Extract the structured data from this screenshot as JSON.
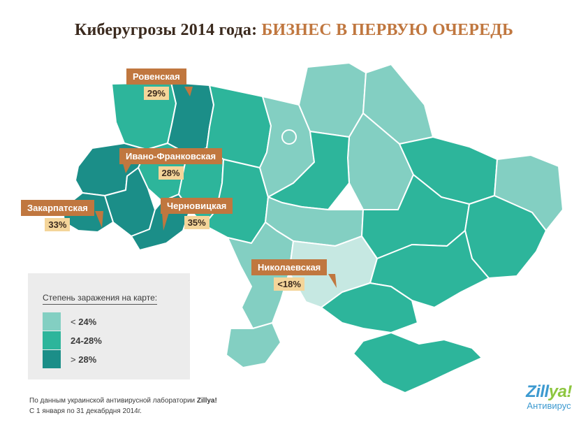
{
  "title": {
    "main": "Киберугрозы 2014 года:",
    "accent": "БИЗНЕС В ПЕРВУЮ ОЧЕРЕДЬ"
  },
  "colors": {
    "low": "#83cfc2",
    "mid": "#2db59b",
    "high": "#1b8e88",
    "lightest": "#c6e8e2",
    "callout_bg": "#c0773f",
    "value_bg": "#f4d59a"
  },
  "callouts": [
    {
      "id": "rivne",
      "region": "Ровенская",
      "value": "29%"
    },
    {
      "id": "ivano",
      "region": "Ивано-Франковская",
      "value": "28%"
    },
    {
      "id": "zakarpattia",
      "region": "Закарпатская",
      "value": "33%"
    },
    {
      "id": "chernivtsi",
      "region": "Черновицкая",
      "value": "35%"
    },
    {
      "id": "mykolaiv",
      "region": "Николаевская",
      "value": "<18%"
    }
  ],
  "legend": {
    "title": "Степень заражения на карте:",
    "items": [
      {
        "label_prefix": "< ",
        "label_value": "24%",
        "color": "#83cfc2"
      },
      {
        "label_prefix": "",
        "label_value": "24-28%",
        "color": "#2db59b"
      },
      {
        "label_prefix": "> ",
        "label_value": "28%",
        "color": "#1b8e88"
      }
    ]
  },
  "footer": {
    "line1_prefix": "По данным украинской антивирусной лаборатории",
    "line1_brand": "Zillya!",
    "line2": "С 1 января по 31 декабрдня 2014г."
  },
  "brand": {
    "logo_main": "Zill",
    "logo_accent": "ya!",
    "subtitle": "Антивирус"
  }
}
